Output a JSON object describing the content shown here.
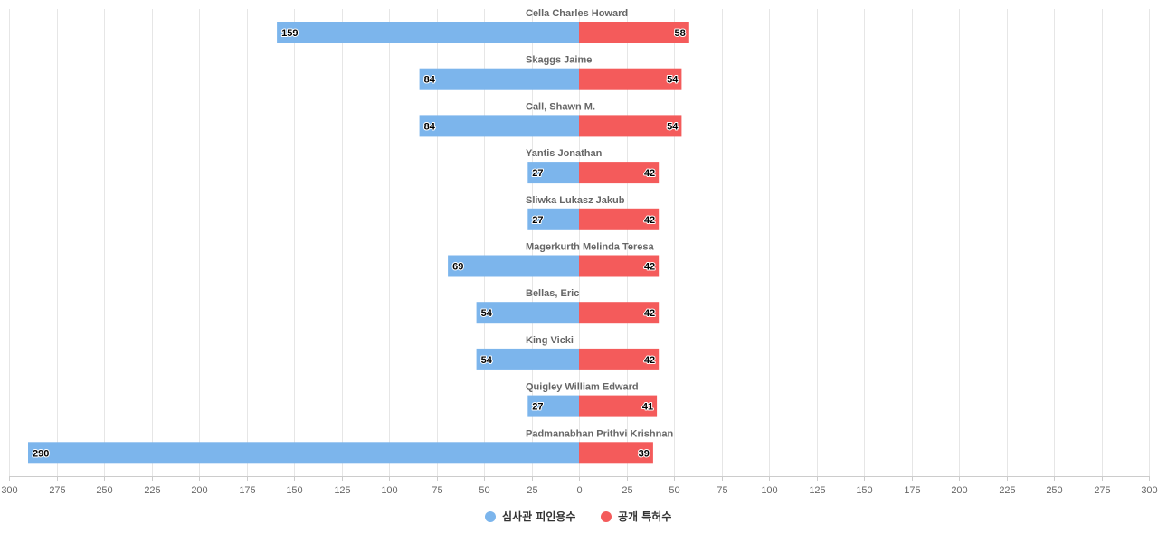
{
  "chart_data": {
    "type": "bar",
    "orientation": "horizontal-diverging",
    "title": "",
    "xlabel": "",
    "ylabel": "",
    "categories": [
      "Cella Charles Howard",
      "Skaggs Jaime",
      "Call, Shawn M.",
      "Yantis Jonathan",
      "Sliwka Lukasz Jakub",
      "Magerkurth Melinda Teresa",
      "Bellas, Eric",
      "King Vicki",
      "Quigley William Edward",
      "Padmanabhan Prithvi Krishnan"
    ],
    "series": [
      {
        "name": "심사관 피인용수",
        "color": "#7cb5ec",
        "direction": "left",
        "values": [
          159,
          84,
          84,
          27,
          27,
          69,
          54,
          54,
          27,
          290
        ]
      },
      {
        "name": "공개 특허수",
        "color": "#f45b5b",
        "direction": "right",
        "values": [
          58,
          54,
          54,
          42,
          42,
          42,
          42,
          42,
          41,
          39
        ]
      }
    ],
    "xlim": [
      -300,
      300
    ],
    "ticks": [
      300,
      275,
      250,
      225,
      200,
      175,
      150,
      125,
      100,
      75,
      50,
      25,
      0,
      25,
      50,
      75,
      100,
      125,
      150,
      175,
      200,
      225,
      250,
      275,
      300
    ],
    "grid": true,
    "legend": "bottom-center"
  }
}
